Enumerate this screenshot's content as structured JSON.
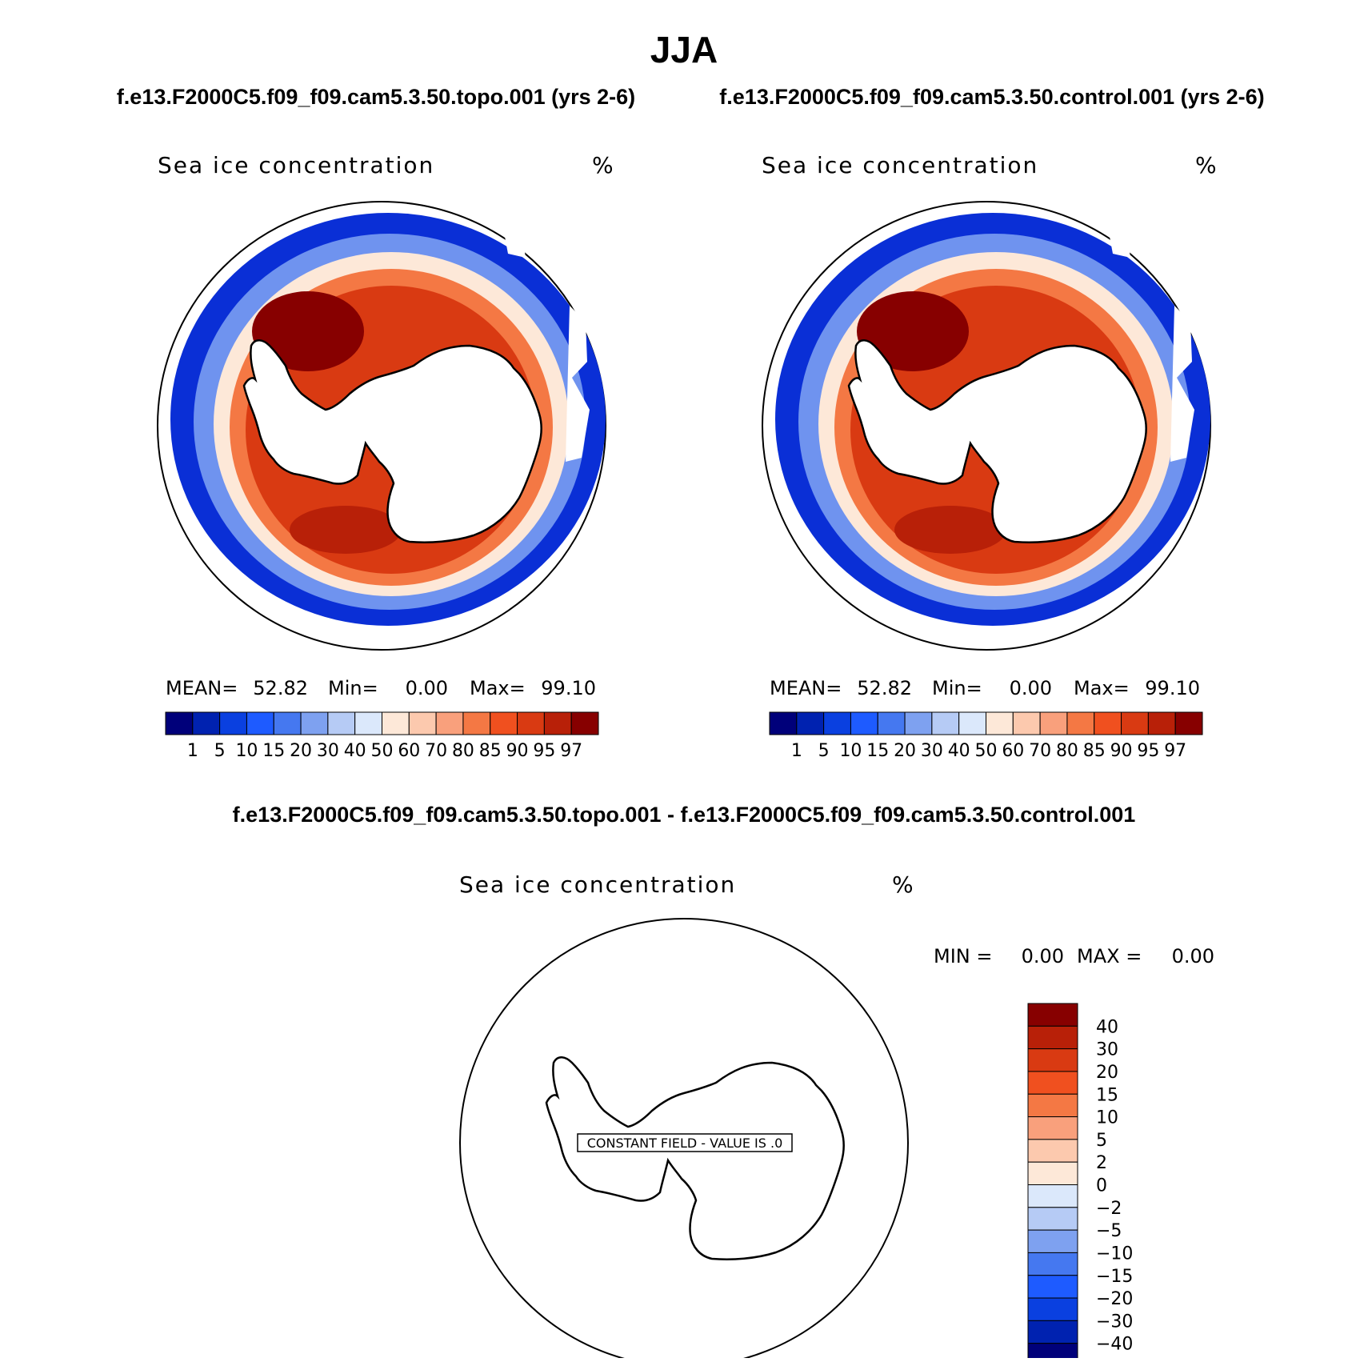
{
  "figure": {
    "season": "JJA",
    "case_topo": "f.e13.F2000C5.f09_f09.cam5.3.50.topo.001 (yrs 2-6)",
    "case_control": "f.e13.F2000C5.f09_f09.cam5.3.50.control.001 (yrs 2-6)",
    "diff_title": "f.e13.F2000C5.f09_f09.cam5.3.50.topo.001 - f.e13.F2000C5.f09_f09.cam5.3.50.control.001"
  },
  "panels": {
    "left": {
      "variable": "Sea ice concentration",
      "units": "%",
      "stats": {
        "mean_label": "MEAN=",
        "mean": "52.82",
        "min_label": "Min=",
        "min": "0.00",
        "max_label": "Max=",
        "max": "99.10"
      }
    },
    "right": {
      "variable": "Sea ice concentration",
      "units": "%",
      "stats": {
        "mean_label": "MEAN=",
        "mean": "52.82",
        "min_label": "Min=",
        "min": "0.00",
        "max_label": "Max=",
        "max": "99.10"
      }
    },
    "diff": {
      "variable": "Sea ice concentration",
      "units": "%",
      "min_label": "MIN =",
      "min": "0.00",
      "max_label": "MAX =",
      "max": "0.00",
      "constant_field_label": "CONSTANT FIELD - VALUE IS .0"
    }
  },
  "colorbars": {
    "concentration": {
      "labels": [
        "1",
        "5",
        "10",
        "15",
        "20",
        "30",
        "40",
        "50",
        "60",
        "70",
        "80",
        "85",
        "90",
        "95",
        "97"
      ],
      "colors": [
        "#00007a",
        "#0022b0",
        "#0a40e0",
        "#1e5bff",
        "#4578f0",
        "#7ea1f0",
        "#b6cbf5",
        "#dbe8fb",
        "#fde8d8",
        "#fcc9ae",
        "#f9a07c",
        "#f47844",
        "#f0501f",
        "#d93a12",
        "#b82008",
        "#870000"
      ]
    },
    "difference": {
      "labels": [
        "40",
        "30",
        "20",
        "15",
        "10",
        "5",
        "2",
        "0",
        "−2",
        "−5",
        "−10",
        "−15",
        "−20",
        "−30",
        "−40"
      ],
      "colors": [
        "#870000",
        "#b82008",
        "#d93a12",
        "#f0501f",
        "#f47844",
        "#f9a07c",
        "#fcc9ae",
        "#fde8d8",
        "#dbe8fb",
        "#b6cbf5",
        "#7ea1f0",
        "#4578f0",
        "#1e5bff",
        "#0a40e0",
        "#0022b0",
        "#00007a"
      ]
    }
  }
}
